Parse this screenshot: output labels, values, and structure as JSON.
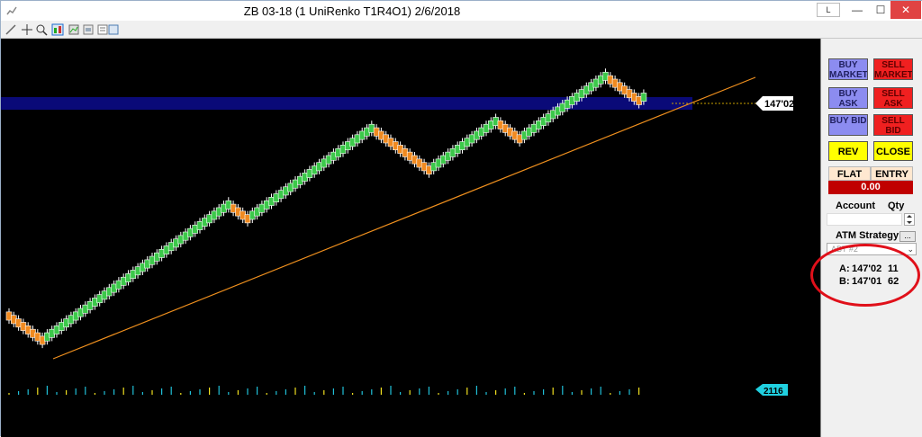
{
  "window": {
    "title": "ZB 03-18 (1 UniRenko T1R4O1)  2/6/2018",
    "btn_l": "L",
    "btn_min": "—",
    "btn_max": "☐",
    "btn_close": "✕"
  },
  "colors": {
    "bull_candle": "#3cc84a",
    "bear_candle": "#f08a20",
    "wick": "#ffffff",
    "blue_band": "#0a0a78",
    "trendline": "#f0901e",
    "volume_up": "#20c0d8",
    "volume_down": "#f0e020",
    "price_marker_bg": "#ffffff",
    "volume_marker_bg": "#20d0e0"
  },
  "price_marker": "147'02",
  "volume_marker": "2116",
  "chart_data": {
    "type": "candlestick",
    "title": "ZB 03-18 (1 UniRenko T1R4O1)  2/6/2018",
    "last_price": "147'02",
    "last_volume": 2116,
    "candles_direction_sequence": "DDDDDDDDUUUUUUUUUUUUUUUUUUUUUUUUUUUUUUUUUUUUUUUDDDDUUUUUUUUUUUUUUUUUUUUUUUUUUDDDDDDDDDDDDUUUUUUUUUUUUUUDDDDDUUUUUUUUUUUUUUUUUUDDDDDDDU",
    "trendline": "ascending support",
    "highlight_band": "blue horizontal band near last price"
  },
  "panel": {
    "buy_market": "BUY MARKET",
    "sell_market": "SELL MARKET",
    "buy_ask": "BUY ASK",
    "sell_ask": "SELL ASK",
    "buy_bid": "BUY BID",
    "sell_bid": "SELL BID",
    "rev": "REV",
    "close": "CLOSE",
    "flat": "FLAT",
    "entry": "ENTRY",
    "pnl": "0.00",
    "account_label": "Account",
    "qty_label": "Qty",
    "atm_label": "ATM Strategy",
    "atm_more": "...",
    "atm_value": "ABT #2",
    "ask_label": "A:",
    "ask_price": "147'02",
    "ask_size": "11",
    "bid_label": "B:",
    "bid_price": "147'01",
    "bid_size": "62"
  }
}
